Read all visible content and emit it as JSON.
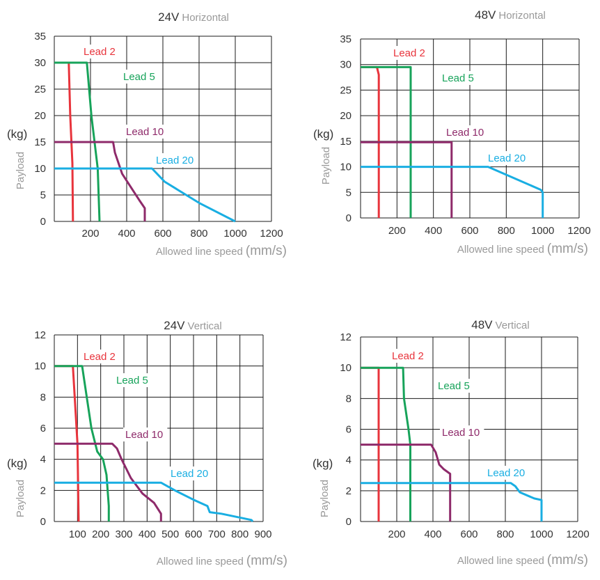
{
  "chart_data": [
    {
      "type": "line",
      "title": "24V",
      "subtitle": "Horizontal",
      "xlabel": "Allowed line speed",
      "xlabel_unit": "(mm/s)",
      "ylabel": "Payload",
      "ylabel_unit": "(kg)",
      "xlim": [
        0,
        1200
      ],
      "ylim": [
        0,
        35
      ],
      "xticks": [
        "200",
        "400",
        "600",
        "800",
        "1000",
        "1200"
      ],
      "yticks": [
        "0",
        "5",
        "10",
        "15",
        "20",
        "25",
        "30",
        "35"
      ],
      "grid": true,
      "series": [
        {
          "name": "Lead 2",
          "color": "#e8343c",
          "points": [
            [
              0,
              30
            ],
            [
              80,
              30
            ],
            [
              88,
              20
            ],
            [
              100,
              11
            ],
            [
              103,
              0
            ]
          ]
        },
        {
          "name": "Lead 5",
          "color": "#17a35a",
          "points": [
            [
              0,
              30
            ],
            [
              180,
              30
            ],
            [
              205,
              20
            ],
            [
              240,
              10
            ],
            [
              250,
              0
            ]
          ]
        },
        {
          "name": "Lead 10",
          "color": "#8e2a6a",
          "points": [
            [
              0,
              15
            ],
            [
              325,
              15
            ],
            [
              335,
              13
            ],
            [
              375,
              9
            ],
            [
              470,
              4
            ],
            [
              500,
              2.5
            ],
            [
              500,
              0
            ]
          ]
        },
        {
          "name": "Lead 20",
          "color": "#19aee2",
          "points": [
            [
              0,
              10
            ],
            [
              540,
              10
            ],
            [
              610,
              7.5
            ],
            [
              800,
              3.5
            ],
            [
              1000,
              0
            ]
          ]
        }
      ]
    },
    {
      "type": "line",
      "title": "48V",
      "subtitle": "Horizontal",
      "xlabel": "Allowed line speed",
      "xlabel_unit": "(mm/s)",
      "ylabel": "Payload",
      "ylabel_unit": "(kg)",
      "xlim": [
        0,
        1200
      ],
      "ylim": [
        0,
        35
      ],
      "xticks": [
        "200",
        "400",
        "600",
        "800",
        "1000",
        "1200"
      ],
      "yticks": [
        "0",
        "5",
        "10",
        "15",
        "20",
        "25",
        "30",
        "35"
      ],
      "grid": true,
      "series": [
        {
          "name": "Lead 2",
          "color": "#e8343c",
          "points": [
            [
              0,
              29.5
            ],
            [
              90,
              29.5
            ],
            [
              100,
              28
            ],
            [
              100,
              0
            ]
          ]
        },
        {
          "name": "Lead 5",
          "color": "#17a35a",
          "points": [
            [
              0,
              29.5
            ],
            [
              275,
              29.5
            ],
            [
              275,
              0
            ]
          ]
        },
        {
          "name": "Lead 10",
          "color": "#8e2a6a",
          "points": [
            [
              0,
              14.8
            ],
            [
              500,
              14.8
            ],
            [
              500,
              0
            ]
          ]
        },
        {
          "name": "Lead 20",
          "color": "#19aee2",
          "points": [
            [
              0,
              10
            ],
            [
              700,
              10
            ],
            [
              990,
              5.5
            ],
            [
              1000,
              5
            ],
            [
              1000,
              0
            ]
          ]
        }
      ]
    },
    {
      "type": "line",
      "title": "24V",
      "subtitle": "Vertical",
      "xlabel": "Allowed line speed",
      "xlabel_unit": "(mm/s)",
      "ylabel": "Payload",
      "ylabel_unit": "(kg)",
      "xlim": [
        0,
        900
      ],
      "ylim": [
        0,
        12
      ],
      "xticks": [
        "100",
        "200",
        "300",
        "400",
        "500",
        "600",
        "700",
        "800",
        "900"
      ],
      "yticks": [
        "0",
        "2",
        "4",
        "6",
        "8",
        "10",
        "12"
      ],
      "grid": true,
      "series": [
        {
          "name": "Lead 2",
          "color": "#e8343c",
          "points": [
            [
              0,
              10
            ],
            [
              80,
              10
            ],
            [
              100,
              5
            ],
            [
              105,
              0
            ]
          ]
        },
        {
          "name": "Lead 5",
          "color": "#17a35a",
          "points": [
            [
              0,
              10
            ],
            [
              120,
              10
            ],
            [
              130,
              9
            ],
            [
              160,
              6
            ],
            [
              185,
              4.5
            ],
            [
              210,
              4
            ],
            [
              225,
              3
            ],
            [
              235,
              1
            ],
            [
              235,
              0
            ]
          ]
        },
        {
          "name": "Lead 10",
          "color": "#8e2a6a",
          "points": [
            [
              0,
              5
            ],
            [
              250,
              5
            ],
            [
              270,
              4.7
            ],
            [
              290,
              4
            ],
            [
              330,
              2.8
            ],
            [
              380,
              1.8
            ],
            [
              430,
              1.2
            ],
            [
              460,
              0.5
            ],
            [
              460,
              0
            ]
          ]
        },
        {
          "name": "Lead 20",
          "color": "#19aee2",
          "points": [
            [
              0,
              2.5
            ],
            [
              460,
              2.5
            ],
            [
              520,
              2
            ],
            [
              600,
              1.4
            ],
            [
              660,
              1
            ],
            [
              670,
              0.6
            ],
            [
              720,
              0.5
            ],
            [
              850,
              0.1
            ],
            [
              855,
              0
            ]
          ]
        }
      ]
    },
    {
      "type": "line",
      "title": "48V",
      "subtitle": "Vertical",
      "xlabel": "Allowed line speed",
      "xlabel_unit": "(mm/s)",
      "ylabel": "Payload",
      "ylabel_unit": "(kg)",
      "xlim": [
        0,
        1200
      ],
      "ylim": [
        0,
        12
      ],
      "xticks": [
        "200",
        "400",
        "600",
        "800",
        "1000",
        "1200"
      ],
      "yticks": [
        "0",
        "2",
        "4",
        "6",
        "8",
        "10",
        "12"
      ],
      "grid": true,
      "series": [
        {
          "name": "Lead 2",
          "color": "#e8343c",
          "points": [
            [
              0,
              10
            ],
            [
              100,
              10
            ],
            [
              100,
              0
            ]
          ]
        },
        {
          "name": "Lead 5",
          "color": "#17a35a",
          "points": [
            [
              0,
              10
            ],
            [
              235,
              10
            ],
            [
              240,
              8
            ],
            [
              265,
              6
            ],
            [
              275,
              5
            ],
            [
              275,
              0
            ]
          ]
        },
        {
          "name": "Lead 10",
          "color": "#8e2a6a",
          "points": [
            [
              0,
              5
            ],
            [
              390,
              5
            ],
            [
              415,
              4.5
            ],
            [
              435,
              3.7
            ],
            [
              460,
              3.4
            ],
            [
              495,
              3.1
            ],
            [
              495,
              0
            ]
          ]
        },
        {
          "name": "Lead 20",
          "color": "#19aee2",
          "points": [
            [
              0,
              2.5
            ],
            [
              830,
              2.5
            ],
            [
              855,
              2.3
            ],
            [
              880,
              1.9
            ],
            [
              960,
              1.5
            ],
            [
              1000,
              1.4
            ],
            [
              1000,
              0
            ]
          ]
        }
      ]
    }
  ]
}
